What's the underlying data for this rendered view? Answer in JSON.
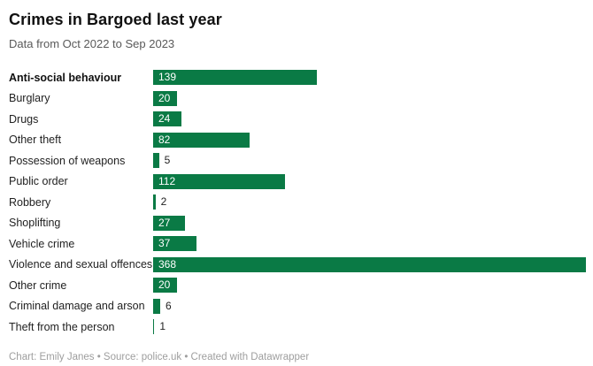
{
  "header": {
    "title": "Crimes in Bargoed last year",
    "subtitle": "Data from Oct 2022 to Sep 2023"
  },
  "footer": {
    "text": "Chart: Emily Janes • Source: police.uk • Created with Datawrapper"
  },
  "theme": {
    "bar_color": "#0a7a45",
    "title_color": "#111111",
    "subtitle_color": "#595959",
    "footer_color": "#9e9e9e",
    "value_inside_color": "#ffffff",
    "value_outside_color": "#222222"
  },
  "chart_data": {
    "type": "bar",
    "orientation": "horizontal",
    "title": "Crimes in Bargoed last year",
    "subtitle": "Data from Oct 2022 to Sep 2023",
    "categories": [
      "Anti-social behaviour",
      "Burglary",
      "Drugs",
      "Other theft",
      "Possession of weapons",
      "Public order",
      "Robbery",
      "Shoplifting",
      "Vehicle crime",
      "Violence and sexual offences",
      "Other crime",
      "Criminal damage and arson",
      "Theft from the person"
    ],
    "values": [
      139,
      20,
      24,
      82,
      5,
      112,
      2,
      27,
      37,
      368,
      20,
      6,
      1
    ],
    "xlim": [
      0,
      368
    ],
    "bar_color": "#0a7a45",
    "emphasized_category": "Anti-social behaviour",
    "value_label_position": "inside-left, outside-right for small bars",
    "grid": false,
    "legend": "none"
  }
}
